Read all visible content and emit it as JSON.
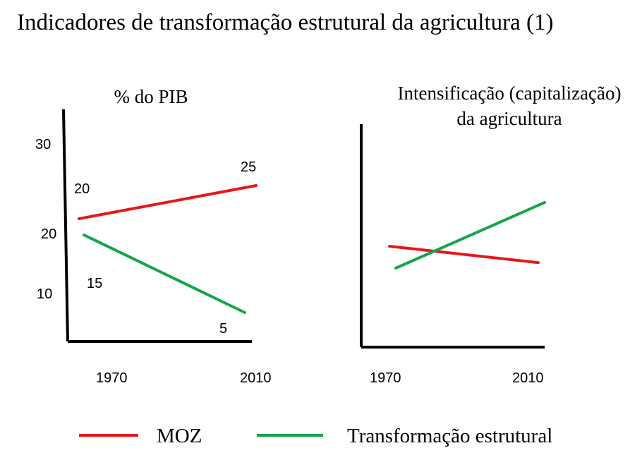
{
  "title": "Indicadores de transformação estrutural da agricultura (1)",
  "colors": {
    "moz": "#e8161b",
    "transformacao": "#16a54a",
    "axis": "#000000"
  },
  "legend": [
    {
      "label": "MOZ",
      "color": "#e8161b"
    },
    {
      "label": "Transformação estrutural",
      "color": "#16a54a"
    }
  ],
  "chart_data": [
    {
      "type": "line",
      "title": "% do PIB",
      "x": [
        "1970",
        "2010"
      ],
      "ytick_labels": [
        "30",
        "20",
        "10"
      ],
      "series": [
        {
          "name": "MOZ",
          "values": [
            20,
            25
          ],
          "labels": [
            "20",
            "25"
          ]
        },
        {
          "name": "Transformação estrutural",
          "values": [
            15,
            5
          ],
          "labels": [
            "15",
            "5"
          ]
        }
      ],
      "grid": false
    },
    {
      "type": "line",
      "title": "Intensificação (capitalização) da agricultura",
      "title_lines": [
        "Intensificação (capitalização)",
        "da agricultura"
      ],
      "x": [
        "1970",
        "2010"
      ],
      "series": [
        {
          "name": "MOZ",
          "values": [
            0.6,
            0.45
          ]
        },
        {
          "name": "Transformação estrutural",
          "values": [
            0.4,
            1.0
          ]
        }
      ],
      "grid": false
    }
  ]
}
